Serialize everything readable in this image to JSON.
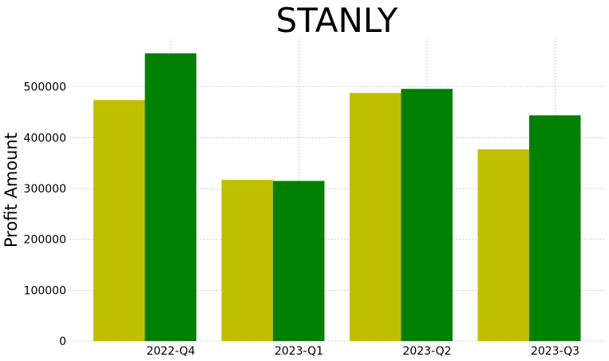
{
  "chart_data": {
    "type": "bar",
    "title": "STANLY",
    "xlabel": "",
    "ylabel": "Profit Amount",
    "categories": [
      "2022-Q4",
      "2023-Q1",
      "2023-Q2",
      "2023-Q3"
    ],
    "series": [
      {
        "values": [
          474000,
          317000,
          488000,
          377000
        ],
        "color": "#bfbf00"
      },
      {
        "values": [
          566000,
          315000,
          496000,
          444000
        ],
        "color": "#008000"
      }
    ],
    "ylim": [
      0,
      597000
    ],
    "yticks": [
      "0",
      "100000",
      "200000",
      "300000",
      "400000",
      "500000"
    ],
    "grid": true,
    "legend": "none"
  }
}
